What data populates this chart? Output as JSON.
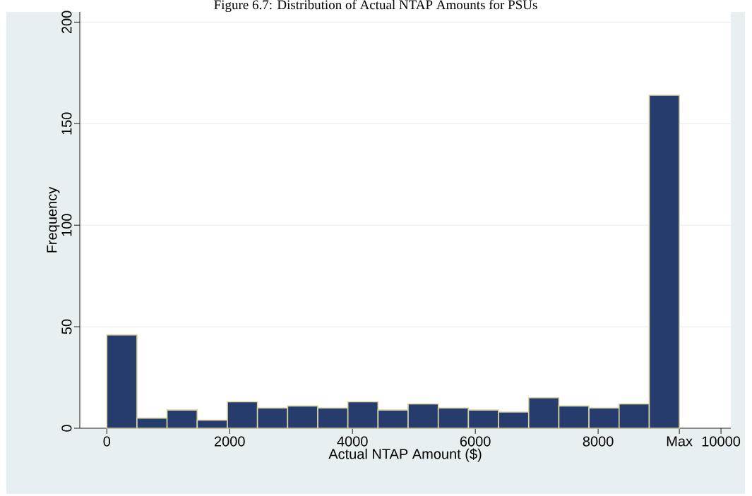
{
  "chart_data": {
    "type": "histogram",
    "title": "Figure 6.7: Distribution of Actual NTAP Amounts for PSUs",
    "xlabel": "Actual NTAP Amount ($)",
    "ylabel": "Frequency",
    "bins": [
      0,
      491,
      981,
      1472,
      1963,
      2453,
      2944,
      3435,
      3925,
      4416,
      4906,
      5397,
      5888,
      6378,
      6869,
      7360,
      7850,
      8341,
      8832,
      9322
    ],
    "values": [
      46,
      5,
      9,
      4,
      13,
      10,
      11,
      10,
      13,
      9,
      12,
      10,
      9,
      8,
      15,
      11,
      10,
      12,
      164
    ],
    "color": "#263c6c",
    "xlim": [
      -440,
      10160
    ],
    "ylim": [
      0,
      205
    ],
    "xticks": [
      0,
      2000,
      4000,
      6000,
      8000,
      {
        "value": 9322,
        "label": "Max"
      },
      10000
    ],
    "yticks": [
      0,
      50,
      100,
      150,
      200
    ],
    "grid": "y"
  }
}
